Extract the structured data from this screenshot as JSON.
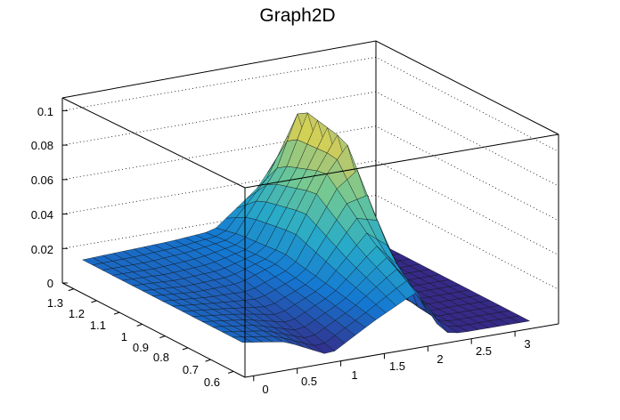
{
  "chart_data": {
    "type": "surface",
    "title": "Graph2D",
    "x_ticks": [
      "0",
      "0.5",
      "1",
      "1.5",
      "2",
      "2.5",
      "3"
    ],
    "y_ticks": [
      "0.6",
      "0.7",
      "0.8",
      "0.9",
      "1",
      "1.1",
      "1.2",
      "1.3"
    ],
    "z_ticks": [
      "0",
      "0.02",
      "0.04",
      "0.06",
      "0.08",
      "0.1"
    ],
    "xlim": [
      -0.1,
      3.5
    ],
    "ylim": [
      0.55,
      1.35
    ],
    "zlim": [
      0,
      0.11
    ],
    "gridlines": "dotted",
    "colormap": "viridis-like",
    "surface_description": "Flat ~0.015 plateau for x<1.5; dip near x~1 at low y; sharp ridge rising to ~0.10 near x~2.2; drops to 0 for x>2.3",
    "series": [
      {
        "y": 0.6,
        "x": [
          0.0,
          0.5,
          1.0,
          1.5,
          2.0,
          2.3,
          2.5,
          3.0
        ],
        "z": [
          0.016,
          0.012,
          0.0,
          0.015,
          0.028,
          0.002,
          0.0,
          0.0
        ]
      },
      {
        "y": 0.8,
        "x": [
          0.0,
          0.5,
          1.0,
          1.5,
          2.0,
          2.3,
          2.5,
          3.0
        ],
        "z": [
          0.016,
          0.013,
          0.008,
          0.02,
          0.045,
          0.03,
          0.0,
          0.0
        ]
      },
      {
        "y": 1.0,
        "x": [
          0.0,
          0.5,
          1.0,
          1.5,
          2.0,
          2.3,
          2.5,
          3.0
        ],
        "z": [
          0.016,
          0.014,
          0.015,
          0.024,
          0.07,
          0.09,
          0.0,
          0.0
        ]
      },
      {
        "y": 1.2,
        "x": [
          0.0,
          0.5,
          1.0,
          1.5,
          2.0,
          2.3,
          2.5,
          3.0
        ],
        "z": [
          0.016,
          0.016,
          0.018,
          0.022,
          0.06,
          0.1,
          0.0,
          0.0
        ]
      },
      {
        "y": 1.3,
        "x": [
          0.0,
          0.5,
          1.0,
          1.5,
          2.0,
          2.3,
          2.5,
          3.0
        ],
        "z": [
          0.016,
          0.017,
          0.018,
          0.02,
          0.04,
          0.06,
          0.0,
          0.0
        ]
      }
    ]
  }
}
